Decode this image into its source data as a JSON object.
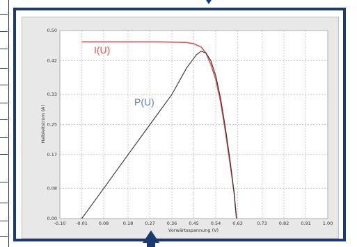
{
  "chart_data": {
    "type": "line",
    "xlabel": "Vorwärtsspannung (V)",
    "ylabel": "Halbleitstrom (A)",
    "x_ticks": [
      "-0.10",
      "-0.01",
      "0.08",
      "0.18",
      "0.27",
      "0.36",
      "0.45",
      "0.54",
      "0.63",
      "0.73",
      "0.82",
      "0.91",
      "1.00"
    ],
    "y_ticks": [
      "0.00",
      "0.08",
      "0.17",
      "0.25",
      "0.33",
      "0.42",
      "0.50"
    ],
    "xlim": [
      -0.1,
      1.0
    ],
    "ylim": [
      0.0,
      0.5
    ],
    "grid": true,
    "series": [
      {
        "name": "I(U)",
        "color": "#e05050",
        "label_color": "#e05050",
        "points": [
          [
            -0.01,
            0.47
          ],
          [
            0.1,
            0.47
          ],
          [
            0.2,
            0.47
          ],
          [
            0.3,
            0.47
          ],
          [
            0.38,
            0.469
          ],
          [
            0.42,
            0.468
          ],
          [
            0.45,
            0.465
          ],
          [
            0.48,
            0.456
          ],
          [
            0.5,
            0.44
          ],
          [
            0.52,
            0.41
          ],
          [
            0.54,
            0.37
          ],
          [
            0.56,
            0.31
          ],
          [
            0.58,
            0.23
          ],
          [
            0.6,
            0.14
          ],
          [
            0.615,
            0.07
          ],
          [
            0.625,
            0.0
          ]
        ]
      },
      {
        "name": "P(U)",
        "color": "#333333",
        "label_color": "#5b7fb0",
        "points": [
          [
            -0.01,
            0.0
          ],
          [
            0.08,
            0.08
          ],
          [
            0.18,
            0.17
          ],
          [
            0.27,
            0.25
          ],
          [
            0.36,
            0.33
          ],
          [
            0.42,
            0.4
          ],
          [
            0.46,
            0.435
          ],
          [
            0.48,
            0.445
          ],
          [
            0.5,
            0.44
          ],
          [
            0.52,
            0.42
          ],
          [
            0.54,
            0.38
          ],
          [
            0.56,
            0.32
          ],
          [
            0.58,
            0.24
          ],
          [
            0.6,
            0.15
          ],
          [
            0.615,
            0.07
          ],
          [
            0.625,
            0.0
          ]
        ]
      }
    ]
  }
}
